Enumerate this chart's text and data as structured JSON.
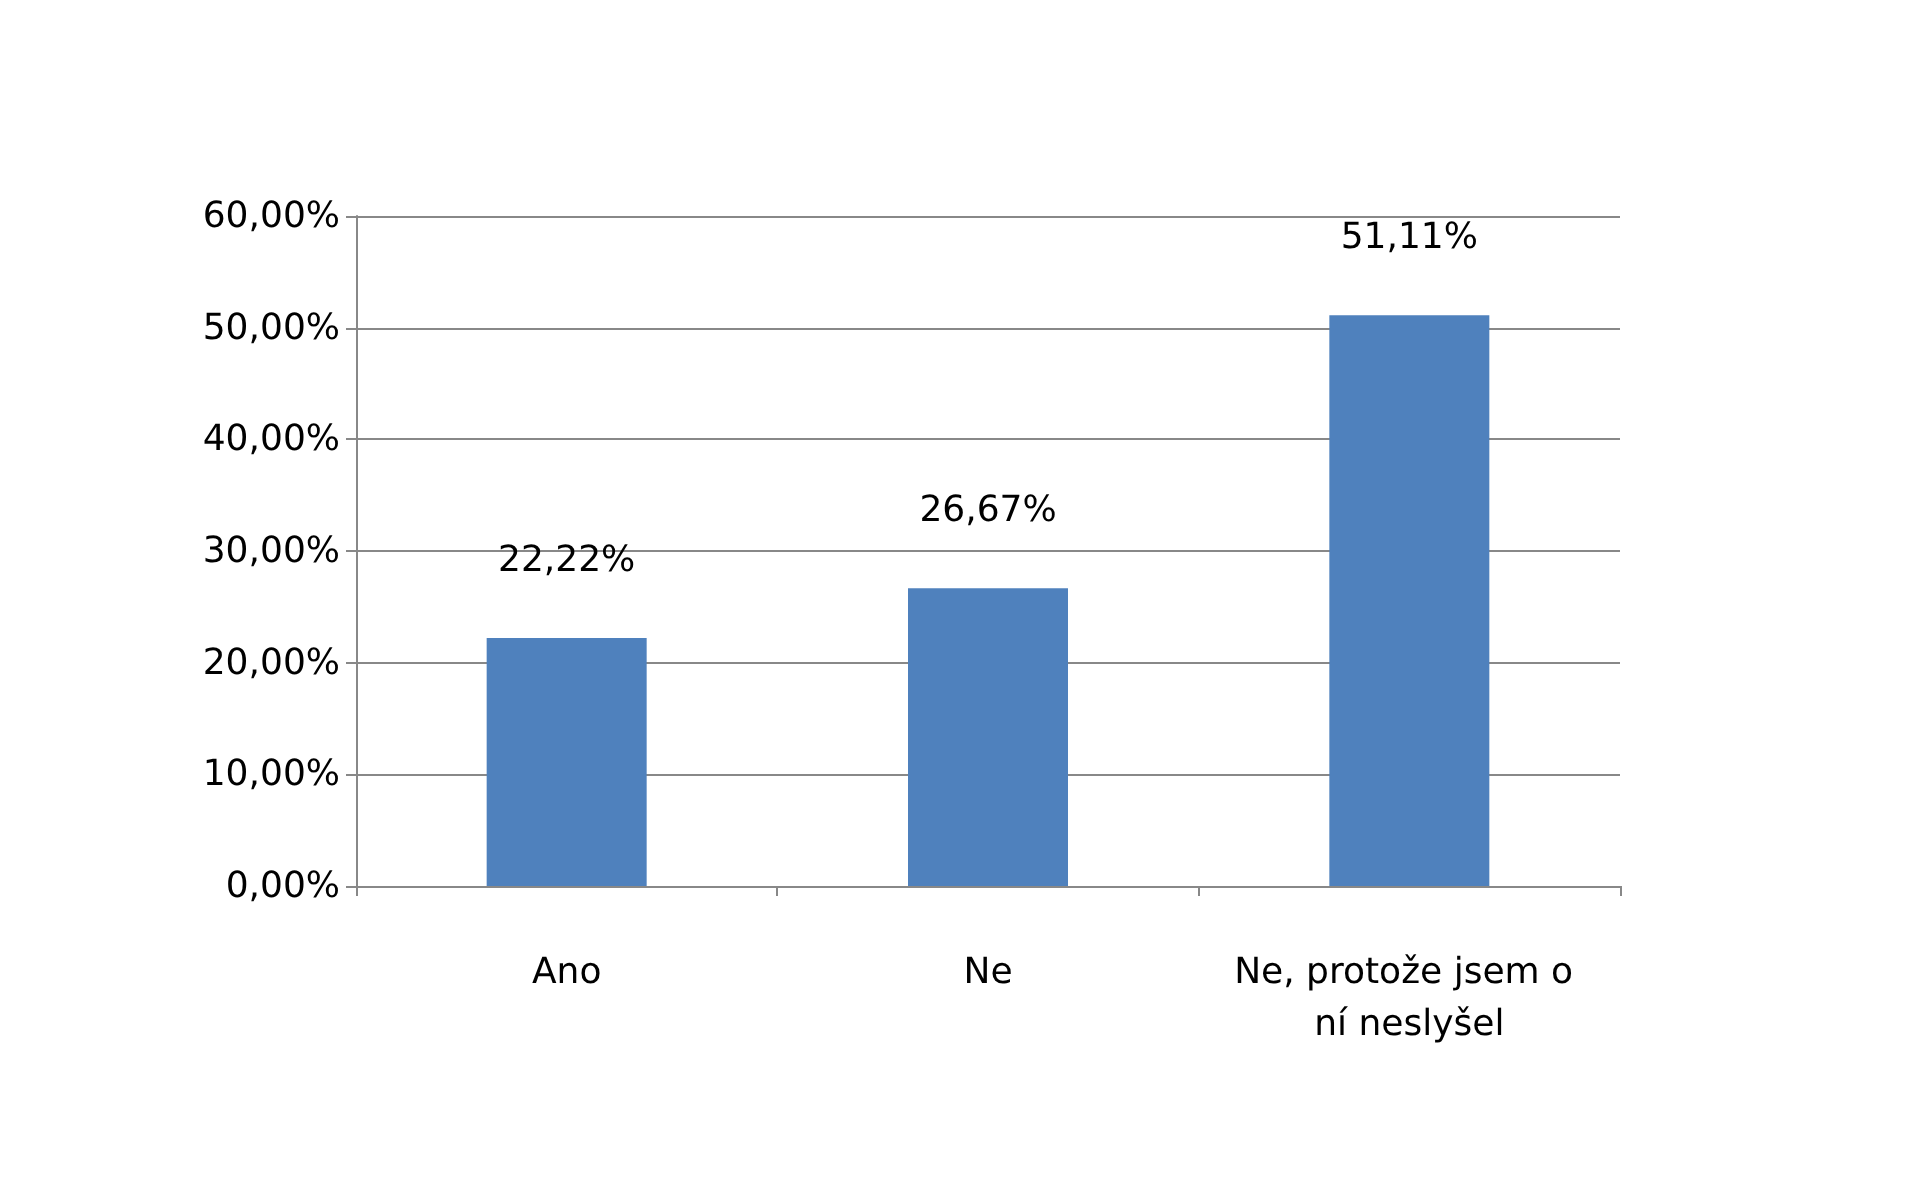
{
  "chart_data": {
    "type": "bar",
    "categories": [
      "Ano",
      "Ne",
      "Ne, protože jsem o ní neslyšel"
    ],
    "values": [
      22.22,
      26.67,
      51.11
    ],
    "value_labels": [
      "22,22%",
      "26,67%",
      "51,11%"
    ],
    "color": "#4f81bd",
    "ylim": [
      0,
      60
    ],
    "yticks": [
      {
        "value": 0,
        "label": "0,00%"
      },
      {
        "value": 10,
        "label": "10,00%"
      },
      {
        "value": 20,
        "label": "20,00%"
      },
      {
        "value": 30,
        "label": "30,00%"
      },
      {
        "value": 40,
        "label": "40,00%"
      },
      {
        "value": 50,
        "label": "50,00%"
      },
      {
        "value": 60,
        "label": "60,00%"
      }
    ],
    "grid": "y"
  }
}
